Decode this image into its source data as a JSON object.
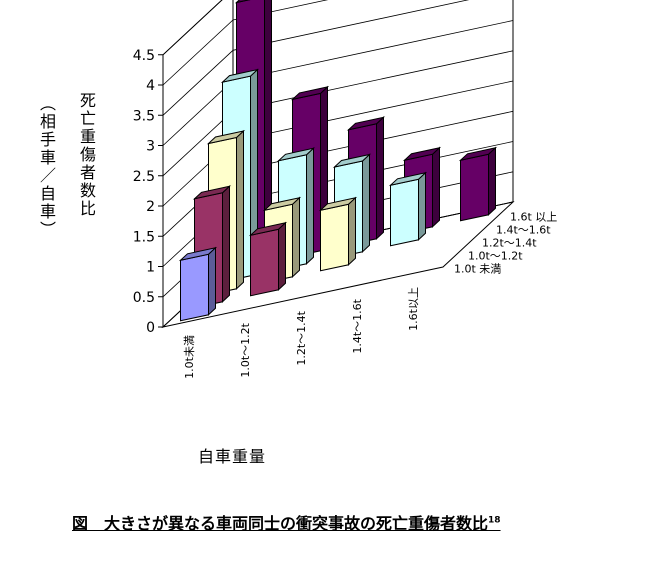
{
  "chart_data": {
    "type": "bar3d",
    "title": "",
    "caption": "図　大きさが異なる車両同士の衝突事故の死亡重傷者数比",
    "caption_ref": "18",
    "ylabel": "死亡重傷者数比",
    "ylabel_sub": "（相手車／自車）",
    "xlabel": "自車重量",
    "ylim": [
      0,
      4.5
    ],
    "yticks": [
      "0",
      "0.5",
      "1",
      "1.5",
      "2",
      "2.5",
      "3",
      "3.5",
      "4",
      "4.5"
    ],
    "categories": [
      "1.0t未満",
      "1.0t～1.2t",
      "1.2t～1.4t",
      "1.4t～1.6t",
      "1.6t以上"
    ],
    "series": [
      {
        "name": "1.0t 未満",
        "color": "#9999ff",
        "values": [
          1,
          null,
          null,
          null,
          null
        ]
      },
      {
        "name": "1.0t～1.2t",
        "color": "#993366",
        "values": [
          1.8,
          1,
          null,
          null,
          null
        ]
      },
      {
        "name": "1.2t～1.4t",
        "color": "#ffffcc",
        "values": [
          2.5,
          1.2,
          1,
          null,
          null
        ]
      },
      {
        "name": "1.4t～1.6t",
        "color": "#ccffff",
        "values": [
          3.3,
          1.8,
          1.5,
          1,
          null
        ]
      },
      {
        "name": "1.6t 以上",
        "color": "#660066",
        "values": [
          4.4,
          2.6,
          1.9,
          1.2,
          1
        ]
      }
    ]
  }
}
